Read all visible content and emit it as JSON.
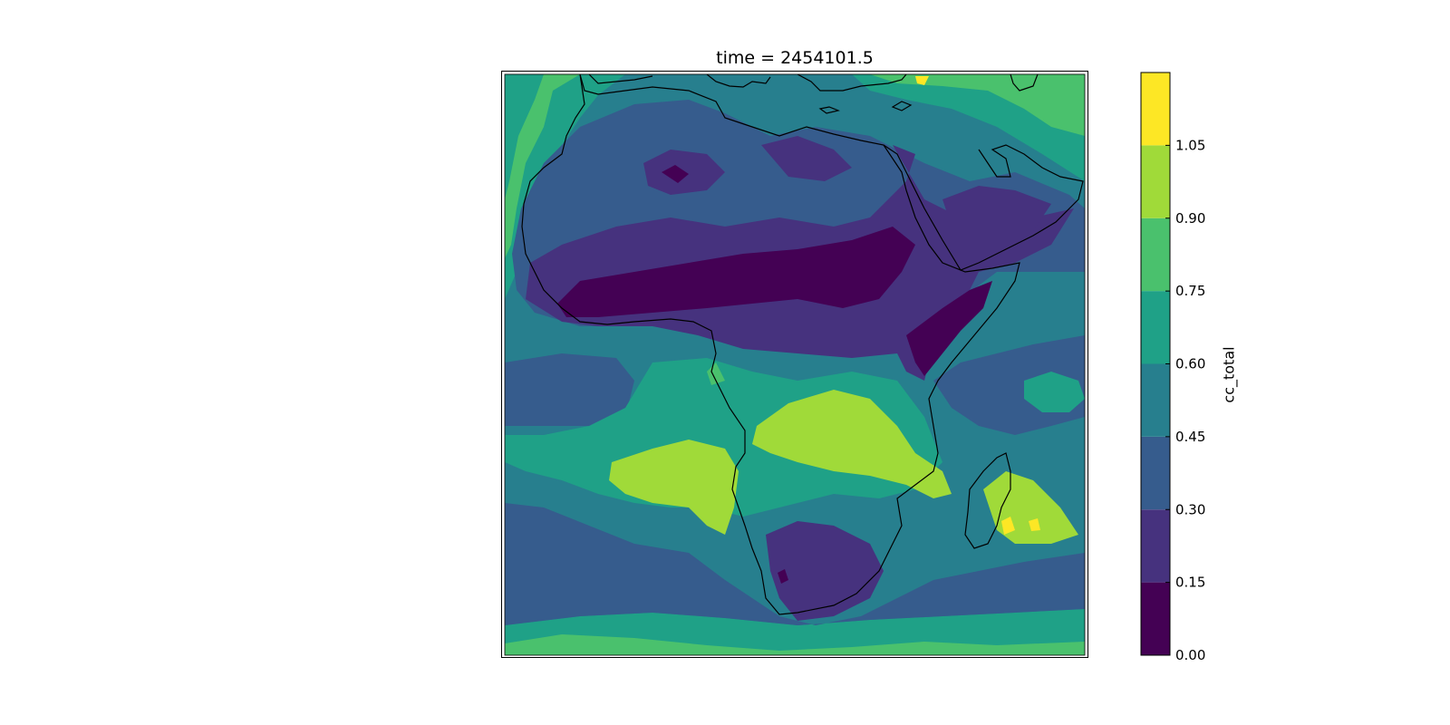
{
  "figure": {
    "title": "time = 2454101.5",
    "colorbar_label": "cc_total"
  },
  "colorbar": {
    "levels": [
      "0.00",
      "0.15",
      "0.30",
      "0.45",
      "0.60",
      "0.75",
      "0.90",
      "1.05"
    ],
    "colors": [
      "#440154",
      "#46327e",
      "#365c8d",
      "#277f8e",
      "#1fa187",
      "#4ac16d",
      "#a0da39",
      "#fde725"
    ]
  },
  "map": {
    "variable": "cc_total",
    "region": "Africa",
    "colormap": "viridis",
    "coastline_color": "#000000"
  }
}
